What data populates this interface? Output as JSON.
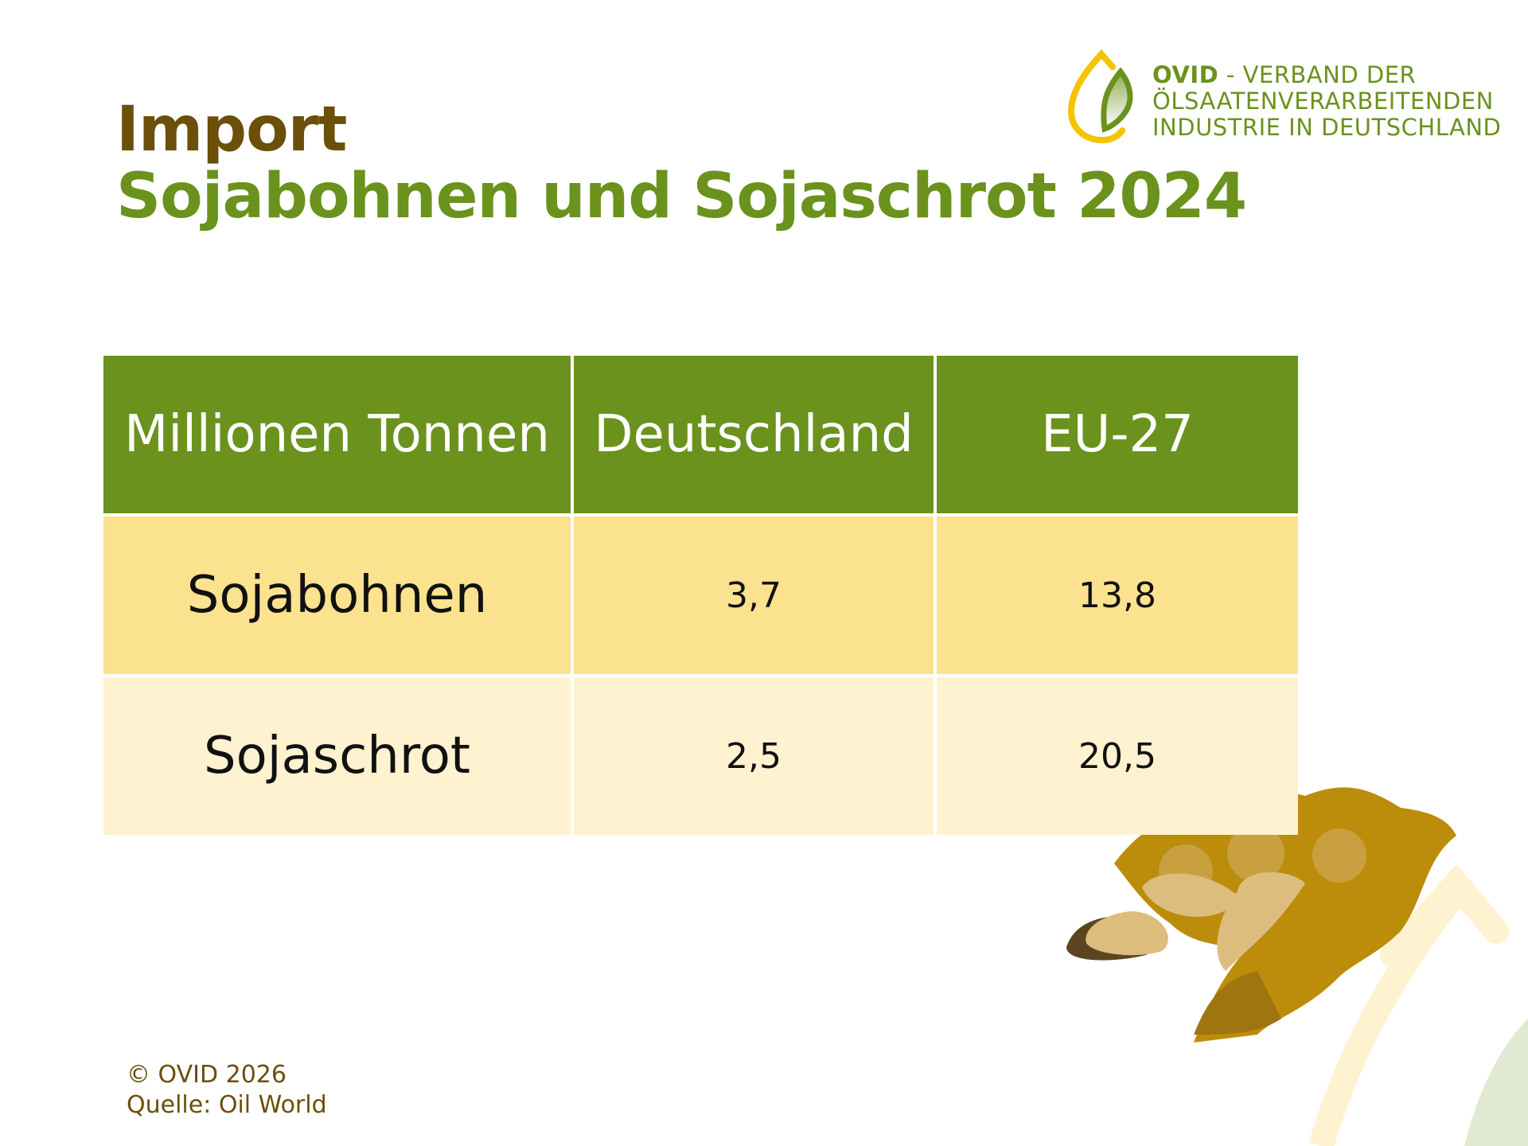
{
  "title": {
    "line1": "Import",
    "line2": "Sojabohnen und Sojaschrot 2024"
  },
  "logo": {
    "brand": "OVID",
    "line1_rest": " - VERBAND DER",
    "line2": "ÖLSAATENVERARBEITENDEN",
    "line3": "INDUSTRIE IN DEUTSCHLAND"
  },
  "table": {
    "headers": [
      "Millionen Tonnen",
      "Deutschland",
      "EU-27"
    ],
    "rows": [
      {
        "label": "Sojabohnen",
        "deutschland": "3,7",
        "eu27": "13,8"
      },
      {
        "label": "Sojaschrot",
        "deutschland": "2,5",
        "eu27": "20,5"
      }
    ]
  },
  "footer": {
    "copyright": "© OVID 2026",
    "source": "Quelle: Oil World"
  },
  "colors": {
    "green": "#6b921c",
    "brown": "#6b4f0a",
    "row1": "#fbe28f",
    "row2": "#fef2d0",
    "yellow": "#f5c400"
  }
}
